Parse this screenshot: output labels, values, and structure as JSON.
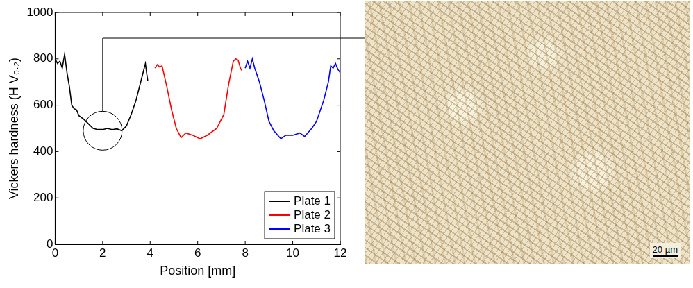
{
  "chart_data": {
    "type": "line",
    "x_label": "Position [mm]",
    "y_label": "Vickers hardness (H V₀.₂)",
    "xlim": [
      0,
      12
    ],
    "xticks": [
      0,
      2,
      4,
      6,
      8,
      10,
      12
    ],
    "ylim": [
      0,
      1000
    ],
    "yticks": [
      0,
      200,
      400,
      600,
      800,
      1000
    ],
    "grid": false,
    "legend": "lower right",
    "highlight": {
      "x": 2,
      "y": 490
    },
    "series": [
      {
        "name": "Plate 1",
        "color": "#000000",
        "x": [
          0,
          0.1,
          0.2,
          0.3,
          0.4,
          0.5,
          0.6,
          0.7,
          0.8,
          0.9,
          1.0,
          1.2,
          1.4,
          1.6,
          1.8,
          2.0,
          2.2,
          2.4,
          2.6,
          2.8,
          3.0,
          3.2,
          3.4,
          3.6,
          3.8,
          3.85,
          3.9
        ],
        "values": [
          800,
          780,
          790,
          760,
          820,
          740,
          680,
          600,
          585,
          580,
          555,
          540,
          520,
          500,
          495,
          495,
          500,
          495,
          498,
          490,
          510,
          560,
          620,
          700,
          780,
          740,
          705
        ]
      },
      {
        "name": "Plate 2",
        "color": "#ff0000",
        "x": [
          4.2,
          4.3,
          4.4,
          4.5,
          4.7,
          4.9,
          5.1,
          5.3,
          5.5,
          5.8,
          6.1,
          6.4,
          6.8,
          7.1,
          7.3,
          7.5,
          7.6,
          7.7,
          7.8,
          7.85
        ],
        "values": [
          760,
          775,
          765,
          770,
          680,
          580,
          500,
          460,
          480,
          470,
          455,
          470,
          500,
          560,
          690,
          790,
          800,
          795,
          760,
          750
        ]
      },
      {
        "name": "Plate 3",
        "color": "#0000ff",
        "x": [
          8.0,
          8.1,
          8.2,
          8.3,
          8.4,
          8.6,
          8.8,
          9.0,
          9.2,
          9.5,
          9.7,
          10.0,
          10.3,
          10.5,
          10.8,
          11.0,
          11.3,
          11.5,
          11.6,
          11.7,
          11.8,
          11.9,
          12.0
        ],
        "values": [
          760,
          790,
          760,
          800,
          760,
          700,
          620,
          530,
          490,
          455,
          470,
          470,
          480,
          465,
          500,
          530,
          620,
          700,
          770,
          760,
          780,
          755,
          740
        ]
      }
    ]
  },
  "micrograph": {
    "scale_bar": "20 µm"
  }
}
